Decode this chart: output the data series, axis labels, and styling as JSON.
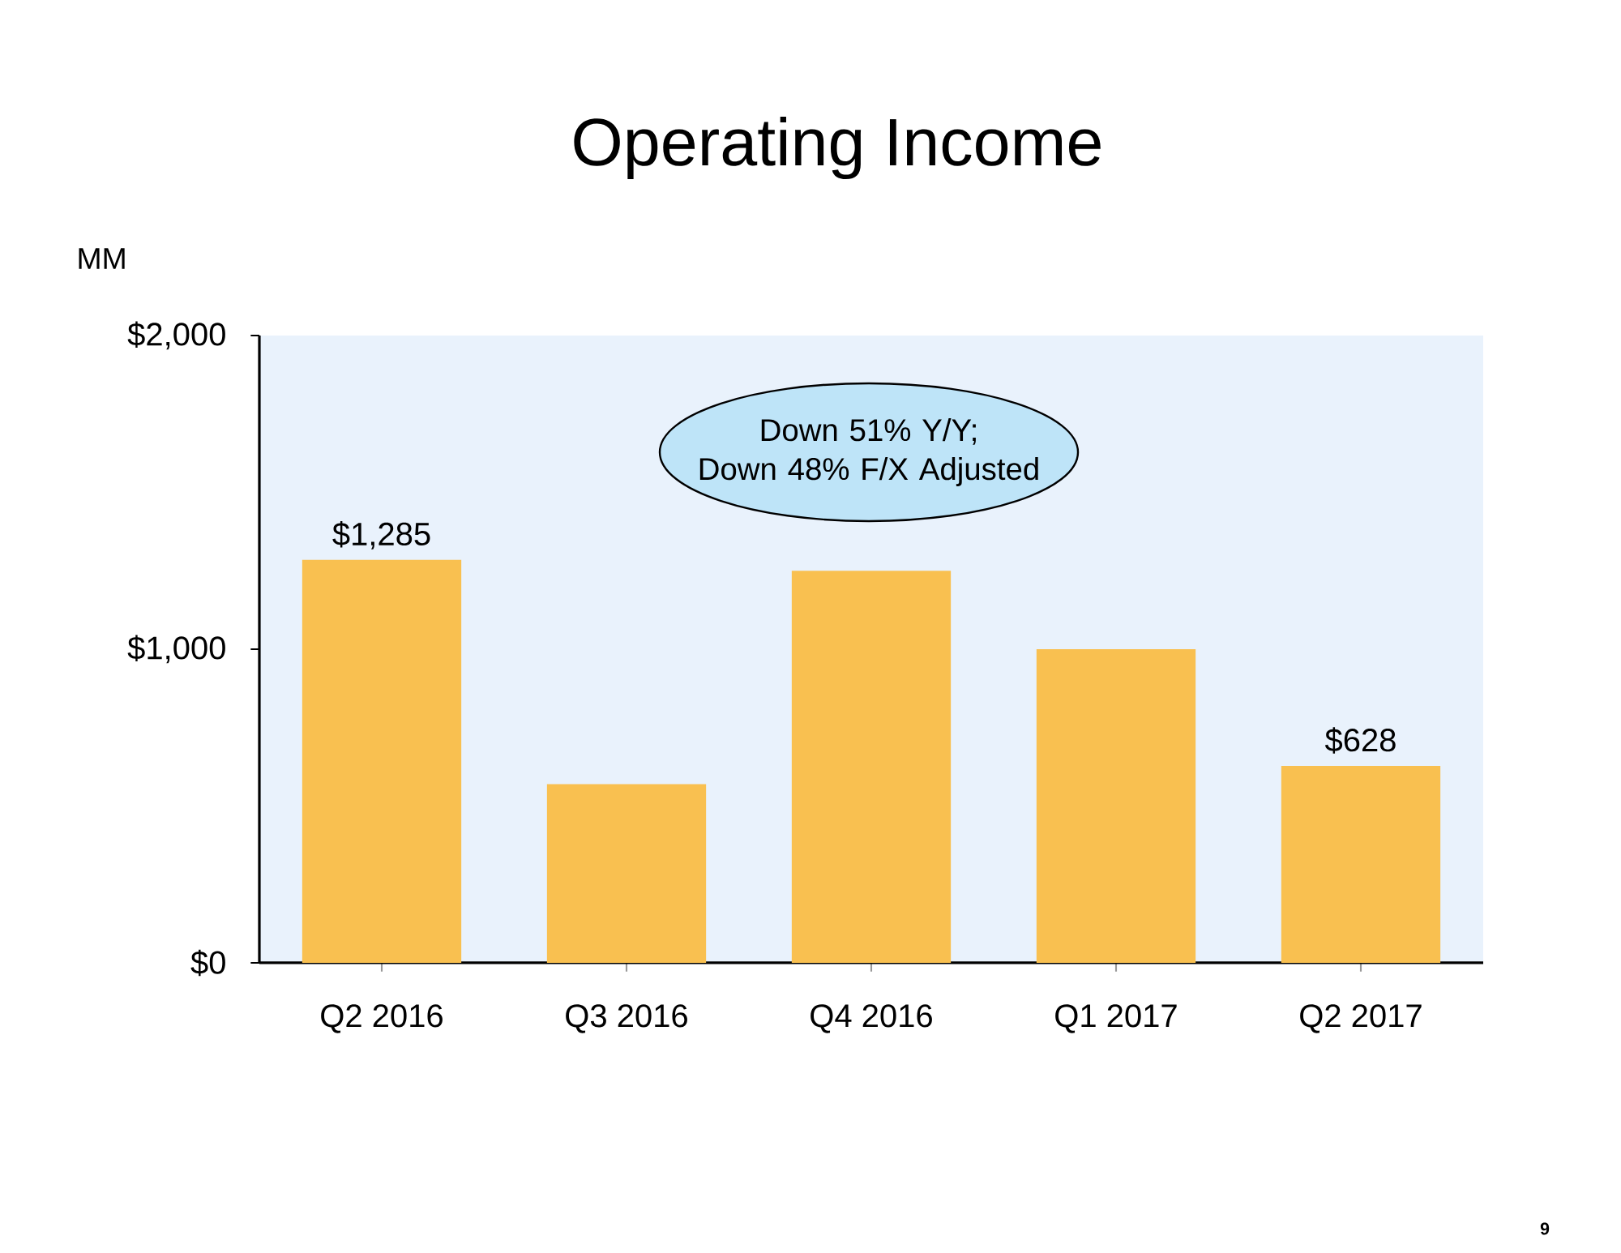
{
  "chart_data": {
    "type": "bar",
    "title": "Operating Income",
    "ylabel": "MM",
    "categories": [
      "Q2 2016",
      "Q3 2016",
      "Q4 2016",
      "Q1 2017",
      "Q2 2017"
    ],
    "values": [
      1285,
      570,
      1250,
      1000,
      628
    ],
    "color": "#f9c050",
    "value_labels": [
      "$1,285",
      null,
      null,
      null,
      "$628"
    ],
    "ylim": [
      0,
      2000
    ],
    "yticks": [
      {
        "value": 0,
        "label": "$0"
      },
      {
        "value": 1000,
        "label": "$1,000"
      },
      {
        "value": 2000,
        "label": "$2,000"
      }
    ],
    "annotations": [
      "Down 51% Y/Y; Down 48% F/X Adjusted",
      "9"
    ]
  }
}
